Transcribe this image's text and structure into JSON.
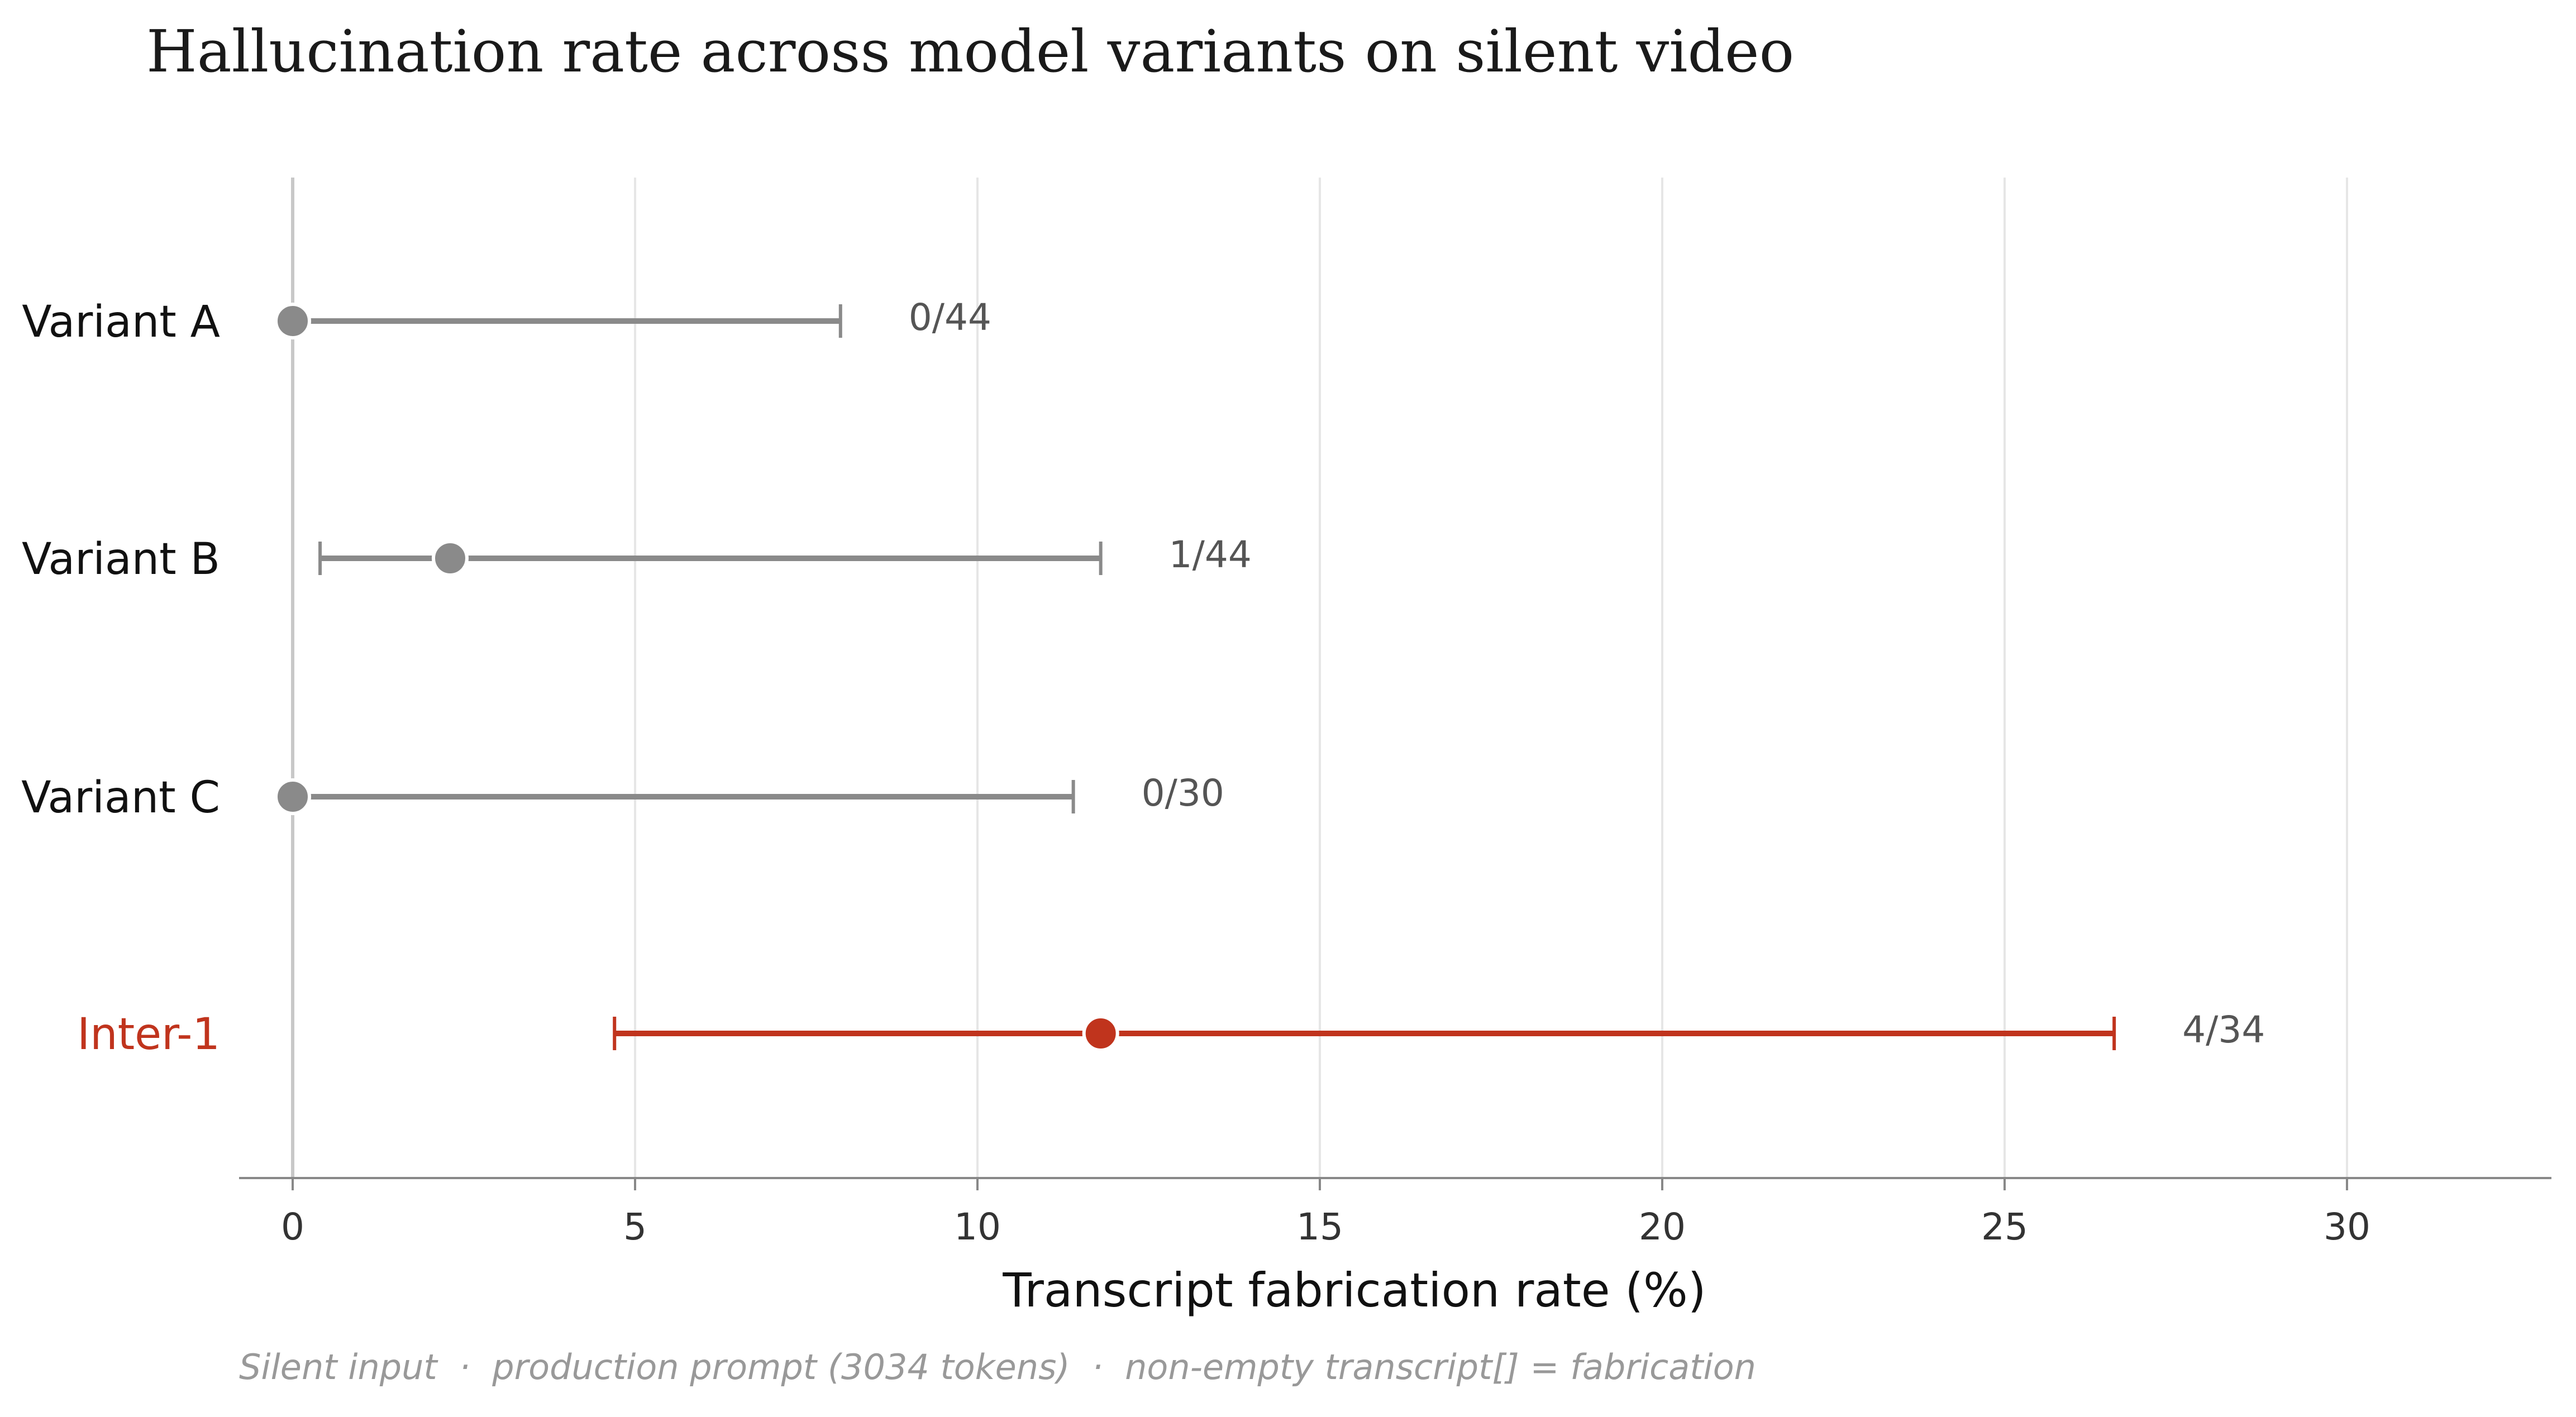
{
  "chart_data": {
    "type": "scatter",
    "title": "Hallucination rate across model variants on silent video",
    "xlabel": "Transcript fabrication rate (%)",
    "ylabel": "",
    "xlim": [
      -0.8,
      33
    ],
    "xticks": [
      0,
      5,
      10,
      15,
      20,
      25,
      30
    ],
    "xtick_labels": [
      "0",
      "5",
      "10",
      "15",
      "20",
      "25",
      "30"
    ],
    "grid": "vertical",
    "legend": "none",
    "series": [
      {
        "name": "Variant A",
        "estimate": 0,
        "ci_low": 0,
        "ci_high": 8.0,
        "count_label": "0/44",
        "color": "#8a8a8a"
      },
      {
        "name": "Variant B",
        "estimate": 2.3,
        "ci_low": 0.4,
        "ci_high": 11.8,
        "count_label": "1/44",
        "color": "#8a8a8a"
      },
      {
        "name": "Variant C",
        "estimate": 0,
        "ci_low": 0,
        "ci_high": 11.4,
        "count_label": "0/30",
        "color": "#8a8a8a"
      },
      {
        "name": "Inter-1",
        "estimate": 11.8,
        "ci_low": 4.7,
        "ci_high": 26.6,
        "count_label": "4/34",
        "color": "#c0341d"
      }
    ],
    "footnote": "Silent input  ·  production prompt (3034 tokens)  ·  non-empty transcript[] = fabrication"
  }
}
